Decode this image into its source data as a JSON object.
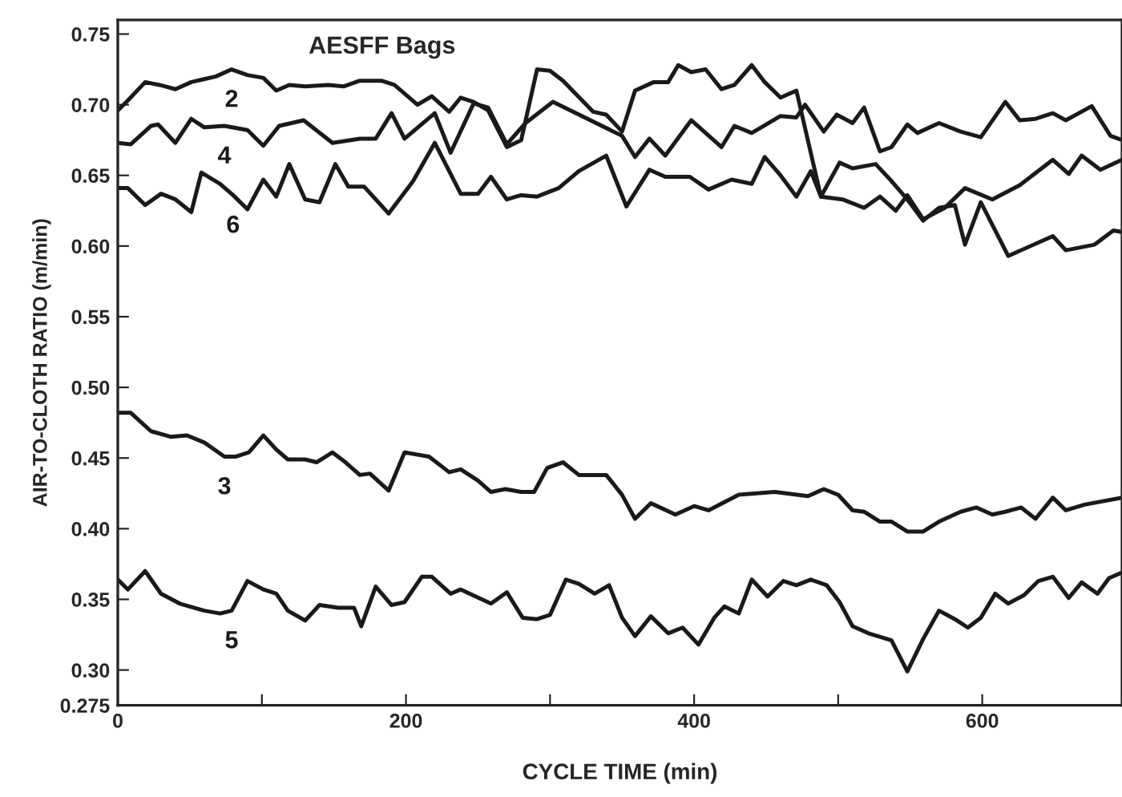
{
  "chart_data": {
    "type": "line",
    "title": "AESFF Bags",
    "xlabel": "CYCLE TIME (min)",
    "ylabel": "AIR-TO-CLOTH RATIO (m/min)",
    "xlim": [
      0,
      697
    ],
    "ylim": [
      0.275,
      0.76
    ],
    "xticks": [
      0,
      {
        "value": 100,
        "label": null
      },
      200,
      {
        "value": 300,
        "label": null
      },
      400,
      {
        "value": 500,
        "label": null
      },
      600
    ],
    "yticks": [
      0.275,
      {
        "value": 0.3,
        "label": "0.30"
      },
      0.35,
      {
        "value": 0.4,
        "label": "0.40"
      },
      0.45,
      {
        "value": 0.5,
        "label": "0.50"
      },
      0.55,
      {
        "value": 0.6,
        "label": "0.60"
      },
      0.65,
      {
        "value": 0.7,
        "label": "0.70"
      },
      0.75
    ],
    "grid": false,
    "legend": false,
    "marker": "none",
    "line_style": "solid",
    "series": [
      {
        "name": "2",
        "color": "#1a1a1a",
        "x": [
          0,
          7,
          19,
          29,
          40,
          51,
          68,
          79,
          90,
          101,
          110,
          119,
          130,
          146,
          157,
          168,
          183,
          192,
          208,
          218,
          230,
          238,
          247,
          257,
          270,
          280,
          291,
          300,
          309,
          330,
          339,
          350,
          359,
          372,
          382,
          389,
          398,
          408,
          419,
          428,
          440,
          449,
          460,
          471,
          488,
          503,
          518,
          529,
          540,
          548,
          559,
          574,
          588,
          607,
          626,
          649,
          660,
          669,
          682,
          697
        ],
        "values": [
          0.696,
          0.703,
          0.716,
          0.714,
          0.711,
          0.716,
          0.72,
          0.725,
          0.721,
          0.719,
          0.71,
          0.714,
          0.713,
          0.714,
          0.713,
          0.717,
          0.717,
          0.714,
          0.7,
          0.706,
          0.695,
          0.705,
          0.702,
          0.696,
          0.67,
          0.675,
          0.725,
          0.724,
          0.717,
          0.695,
          0.693,
          0.681,
          0.71,
          0.716,
          0.716,
          0.728,
          0.723,
          0.725,
          0.711,
          0.714,
          0.728,
          0.716,
          0.705,
          0.71,
          0.635,
          0.633,
          0.627,
          0.635,
          0.625,
          0.636,
          0.619,
          0.627,
          0.641,
          0.633,
          0.643,
          0.661,
          0.651,
          0.664,
          0.654,
          0.661
        ]
      },
      {
        "name": "4",
        "color": "#1a1a1a",
        "x": [
          0,
          9,
          23,
          28,
          40,
          51,
          60,
          74,
          90,
          101,
          112,
          129,
          149,
          168,
          179,
          190,
          199,
          220,
          231,
          247,
          257,
          270,
          283,
          302,
          350,
          359,
          369,
          380,
          398,
          419,
          428,
          440,
          460,
          471,
          477,
          490,
          499,
          510,
          518,
          529,
          537,
          548,
          555,
          570,
          585,
          599,
          616,
          626,
          637,
          649,
          658,
          676,
          689,
          697
        ],
        "values": [
          0.673,
          0.672,
          0.685,
          0.686,
          0.673,
          0.69,
          0.684,
          0.685,
          0.682,
          0.671,
          0.685,
          0.689,
          0.673,
          0.676,
          0.676,
          0.694,
          0.676,
          0.694,
          0.666,
          0.701,
          0.698,
          0.672,
          0.687,
          0.702,
          0.678,
          0.663,
          0.676,
          0.664,
          0.689,
          0.67,
          0.685,
          0.68,
          0.692,
          0.691,
          0.7,
          0.681,
          0.693,
          0.687,
          0.698,
          0.667,
          0.67,
          0.686,
          0.68,
          0.687,
          0.681,
          0.677,
          0.702,
          0.689,
          0.69,
          0.694,
          0.689,
          0.699,
          0.678,
          0.675
        ]
      },
      {
        "name": "6",
        "color": "#1a1a1a",
        "x": [
          0,
          7,
          19,
          30,
          40,
          51,
          58,
          71,
          80,
          90,
          101,
          110,
          119,
          130,
          140,
          151,
          160,
          171,
          188,
          205,
          220,
          238,
          250,
          259,
          270,
          280,
          291,
          306,
          320,
          339,
          353,
          369,
          380,
          397,
          410,
          426,
          440,
          449,
          460,
          471,
          481,
          488,
          501,
          510,
          526,
          537,
          548,
          559,
          570,
          581,
          588,
          599,
          618,
          649,
          658,
          678,
          691,
          697
        ],
        "values": [
          0.641,
          0.641,
          0.629,
          0.637,
          0.633,
          0.624,
          0.652,
          0.644,
          0.636,
          0.626,
          0.647,
          0.635,
          0.658,
          0.633,
          0.631,
          0.658,
          0.642,
          0.642,
          0.623,
          0.646,
          0.673,
          0.637,
          0.637,
          0.649,
          0.633,
          0.636,
          0.635,
          0.641,
          0.653,
          0.664,
          0.628,
          0.654,
          0.649,
          0.649,
          0.64,
          0.647,
          0.644,
          0.663,
          0.65,
          0.635,
          0.653,
          0.635,
          0.659,
          0.655,
          0.658,
          0.646,
          0.633,
          0.618,
          0.627,
          0.629,
          0.601,
          0.631,
          0.593,
          0.607,
          0.597,
          0.601,
          0.611,
          0.61
        ]
      },
      {
        "name": "3",
        "color": "#1a1a1a",
        "x": [
          0,
          9,
          23,
          37,
          48,
          60,
          74,
          82,
          91,
          101,
          110,
          118,
          130,
          138,
          149,
          158,
          168,
          175,
          188,
          199,
          216,
          230,
          238,
          250,
          259,
          269,
          280,
          289,
          298,
          309,
          320,
          339,
          350,
          359,
          370,
          387,
          400,
          410,
          431,
          456,
          479,
          490,
          500,
          510,
          518,
          529,
          537,
          548,
          559,
          570,
          585,
          596,
          607,
          616,
          627,
          637,
          649,
          658,
          671,
          697
        ],
        "values": [
          0.482,
          0.482,
          0.469,
          0.465,
          0.466,
          0.461,
          0.451,
          0.451,
          0.454,
          0.466,
          0.456,
          0.449,
          0.449,
          0.447,
          0.454,
          0.447,
          0.438,
          0.439,
          0.427,
          0.454,
          0.451,
          0.44,
          0.442,
          0.434,
          0.426,
          0.428,
          0.426,
          0.426,
          0.443,
          0.447,
          0.438,
          0.438,
          0.424,
          0.407,
          0.418,
          0.41,
          0.416,
          0.413,
          0.424,
          0.426,
          0.423,
          0.428,
          0.424,
          0.413,
          0.412,
          0.405,
          0.405,
          0.398,
          0.398,
          0.405,
          0.412,
          0.415,
          0.41,
          0.412,
          0.415,
          0.407,
          0.422,
          0.413,
          0.417,
          0.422
        ]
      },
      {
        "name": "5",
        "color": "#1a1a1a",
        "x": [
          0,
          7,
          19,
          30,
          43,
          60,
          71,
          79,
          90,
          101,
          110,
          118,
          130,
          140,
          153,
          164,
          169,
          179,
          190,
          199,
          211,
          218,
          231,
          238,
          259,
          270,
          281,
          291,
          300,
          311,
          320,
          331,
          341,
          350,
          359,
          370,
          382,
          392,
          403,
          414,
          421,
          431,
          440,
          451,
          462,
          471,
          481,
          492,
          501,
          510,
          521,
          537,
          548,
          559,
          570,
          581,
          590,
          599,
          609,
          618,
          629,
          639,
          649,
          660,
          669,
          680,
          688,
          697
        ],
        "values": [
          0.364,
          0.357,
          0.37,
          0.354,
          0.347,
          0.342,
          0.34,
          0.342,
          0.363,
          0.357,
          0.354,
          0.342,
          0.335,
          0.346,
          0.344,
          0.344,
          0.331,
          0.359,
          0.346,
          0.348,
          0.366,
          0.366,
          0.354,
          0.357,
          0.347,
          0.355,
          0.337,
          0.336,
          0.339,
          0.364,
          0.361,
          0.354,
          0.36,
          0.337,
          0.324,
          0.338,
          0.326,
          0.33,
          0.318,
          0.337,
          0.345,
          0.34,
          0.364,
          0.352,
          0.363,
          0.36,
          0.364,
          0.36,
          0.348,
          0.331,
          0.326,
          0.321,
          0.299,
          0.322,
          0.342,
          0.336,
          0.33,
          0.337,
          0.354,
          0.347,
          0.353,
          0.363,
          0.366,
          0.351,
          0.362,
          0.354,
          0.365,
          0.369
        ]
      }
    ]
  }
}
